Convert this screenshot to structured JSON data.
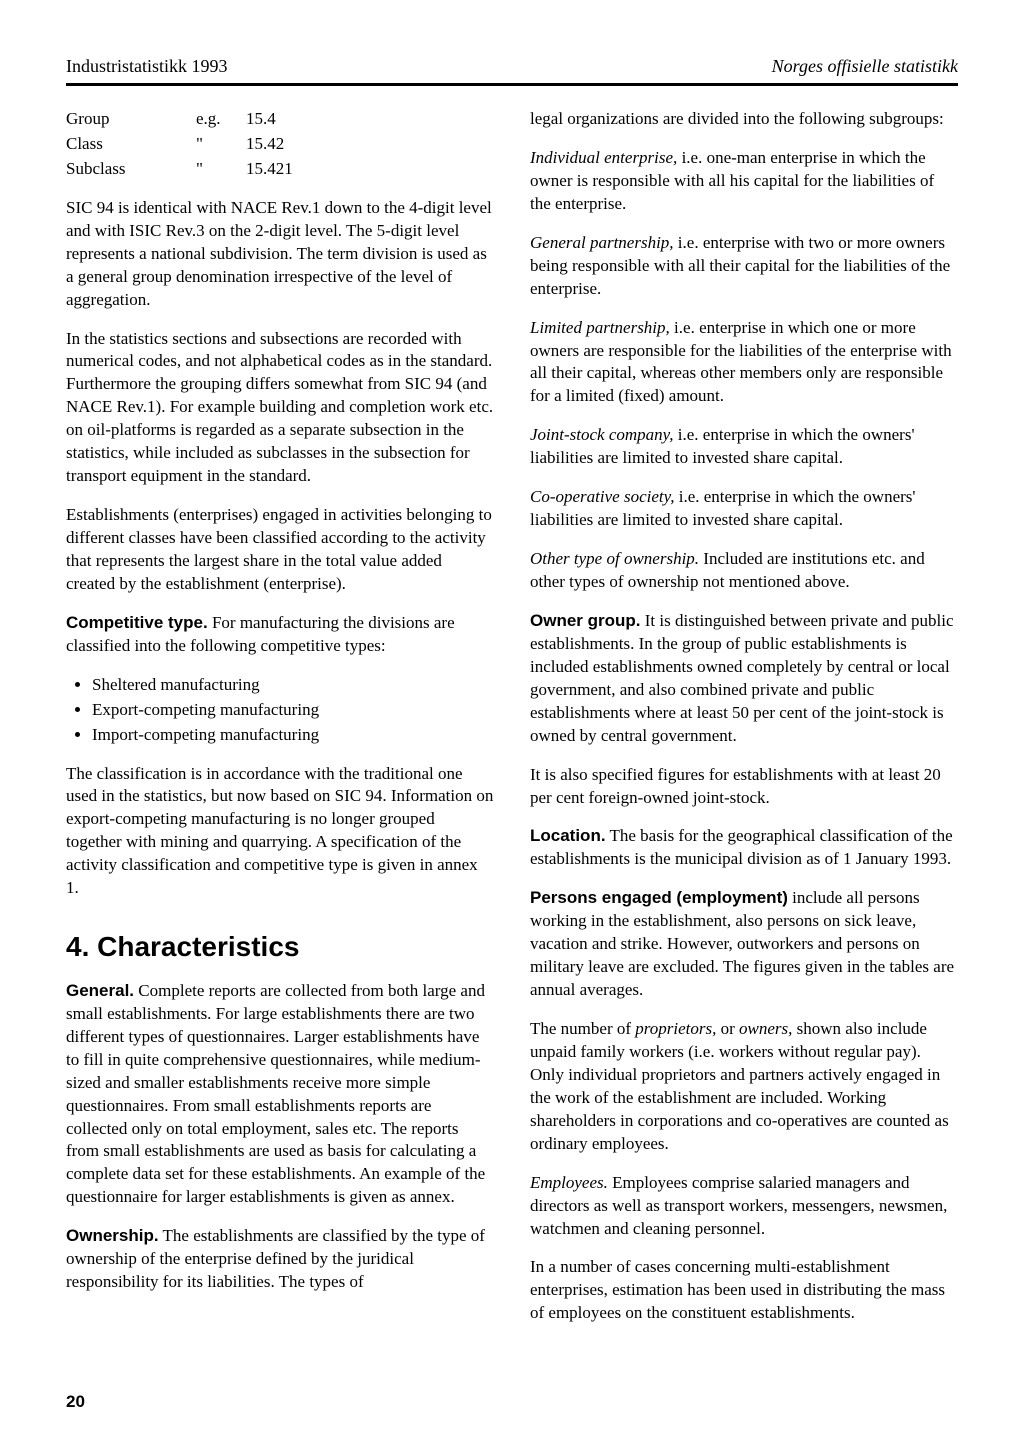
{
  "header": {
    "left": "Industristatistikk 1993",
    "right": "Norges offisielle statistikk"
  },
  "page_number": "20",
  "classification_table": {
    "rows": [
      {
        "label": "Group",
        "mark": "e.g.",
        "value": "15.4"
      },
      {
        "label": "Class",
        "mark": "\"",
        "value": "15.42"
      },
      {
        "label": "Subclass",
        "mark": "\"",
        "value": "15.421"
      }
    ]
  },
  "left_col": {
    "p1": "SIC 94 is identical with NACE Rev.1 down to the 4-digit level and with ISIC Rev.3 on the 2-digit level. The 5-digit level represents a national subdivision. The term division is used as a general group denomination irrespective of the level of aggregation.",
    "p2": "In the statistics sections and subsections are recorded with numerical codes, and not alphabetical codes as in the standard. Furthermore the grouping differs somewhat from SIC 94 (and NACE Rev.1). For example building and completion work etc. on oil-platforms is regarded as a separate subsection in the statistics, while included as subclasses in the subsection for transport equipment in the standard.",
    "p3": "Establishments (enterprises) engaged in activities belonging to different classes have been classified according to the activity that represents the largest share in the total value added created by the establishment (enterprise).",
    "competitive_label": "Competitive type.",
    "competitive_text": " For manufacturing the divisions are classified into the following competitive types:",
    "bullets": [
      "Sheltered manufacturing",
      "Export-competing manufacturing",
      "Import-competing manufacturing"
    ],
    "p4": "The classification is in accordance with the traditional one used in the statistics, but now based on SIC 94. Information on export-competing manufacturing is no longer grouped together with mining and quarrying. A specification of the activity classification and competitive type is given in annex 1.",
    "section_heading": "4. Characteristics",
    "general_label": "General.",
    "general_text": " Complete reports are collected from both large and small establishments. For large establishments there are two different types of questionnaires. Larger establishments have to fill in quite comprehensive questionnaires, while medium-sized and smaller establishments receive more simple questionnaires. From small establishments reports are collected only on total employment, sales etc. The reports from small establishments are used as basis for calculating a complete data set for these establishments. An example of the questionnaire for larger establishments is given as annex.",
    "ownership_label": "Ownership.",
    "ownership_text": " The establishments are classified by the type of ownership of the enterprise defined by the juridical responsibility for its liabilities. The types of"
  },
  "right_col": {
    "p0": "legal organizations are divided into the following subgroups:",
    "ind_label": "Individual enterprise,",
    "ind_text": " i.e. one-man enterprise in which the owner is responsible with all his capital for the liabilities of the enterprise.",
    "gen_label": "General partnership,",
    "gen_text": " i.e. enterprise with two or more owners being responsible with all their capital for the liabilities of the enterprise.",
    "lim_label": "Limited partnership,",
    "lim_text": " i.e. enterprise in which one or more owners are responsible for the liabilities of the enterprise with all their capital, whereas other members only are responsible for a limited (fixed) amount.",
    "joint_label": "Joint-stock company,",
    "joint_text": " i.e. enterprise in which the owners' liabilities are limited to invested share capital.",
    "coop_label": "Co-operative society,",
    "coop_text": " i.e. enterprise in which the owners' liabilities are limited to invested share capital.",
    "other_label": "Other type of ownership.",
    "other_text": " Included are institutions etc. and other types of ownership not mentioned above.",
    "owner_group_label": "Owner group.",
    "owner_group_text": " It is distinguished between private and public establishments. In the group of public establishments is included establishments owned completely by central or local government, and also combined private and public establishments where at least 50 per cent of the joint-stock is owned by central government.",
    "p_foreign": "It is also specified figures for establishments with at least 20 per cent foreign-owned joint-stock.",
    "location_label": "Location.",
    "location_text": " The basis for the geographical classification of the establishments is the municipal division as of 1 January 1993.",
    "persons_label": "Persons engaged (employment)",
    "persons_text": " include all persons working in the establishment, also persons on sick leave, vacation and strike. However, outworkers and persons on military leave are excluded. The figures given in the tables are annual averages.",
    "prop_pre": "The number of ",
    "prop_ital1": "proprietors,",
    "prop_mid": " or ",
    "prop_ital2": "owners,",
    "prop_text": " shown also include unpaid family workers (i.e. workers without regular pay). Only individual proprietors and partners actively engaged in the work of the establishment are included. Working shareholders in corporations and co-operatives are counted as ordinary employees.",
    "emp_label": "Employees.",
    "emp_text": " Employees comprise salaried managers and directors as well as transport workers, messengers, newsmen, watchmen and cleaning personnel.",
    "p_multi": "In a number of cases concerning multi-establishment enterprises, estimation has been used in distributing the mass of employees on the constituent establishments."
  }
}
